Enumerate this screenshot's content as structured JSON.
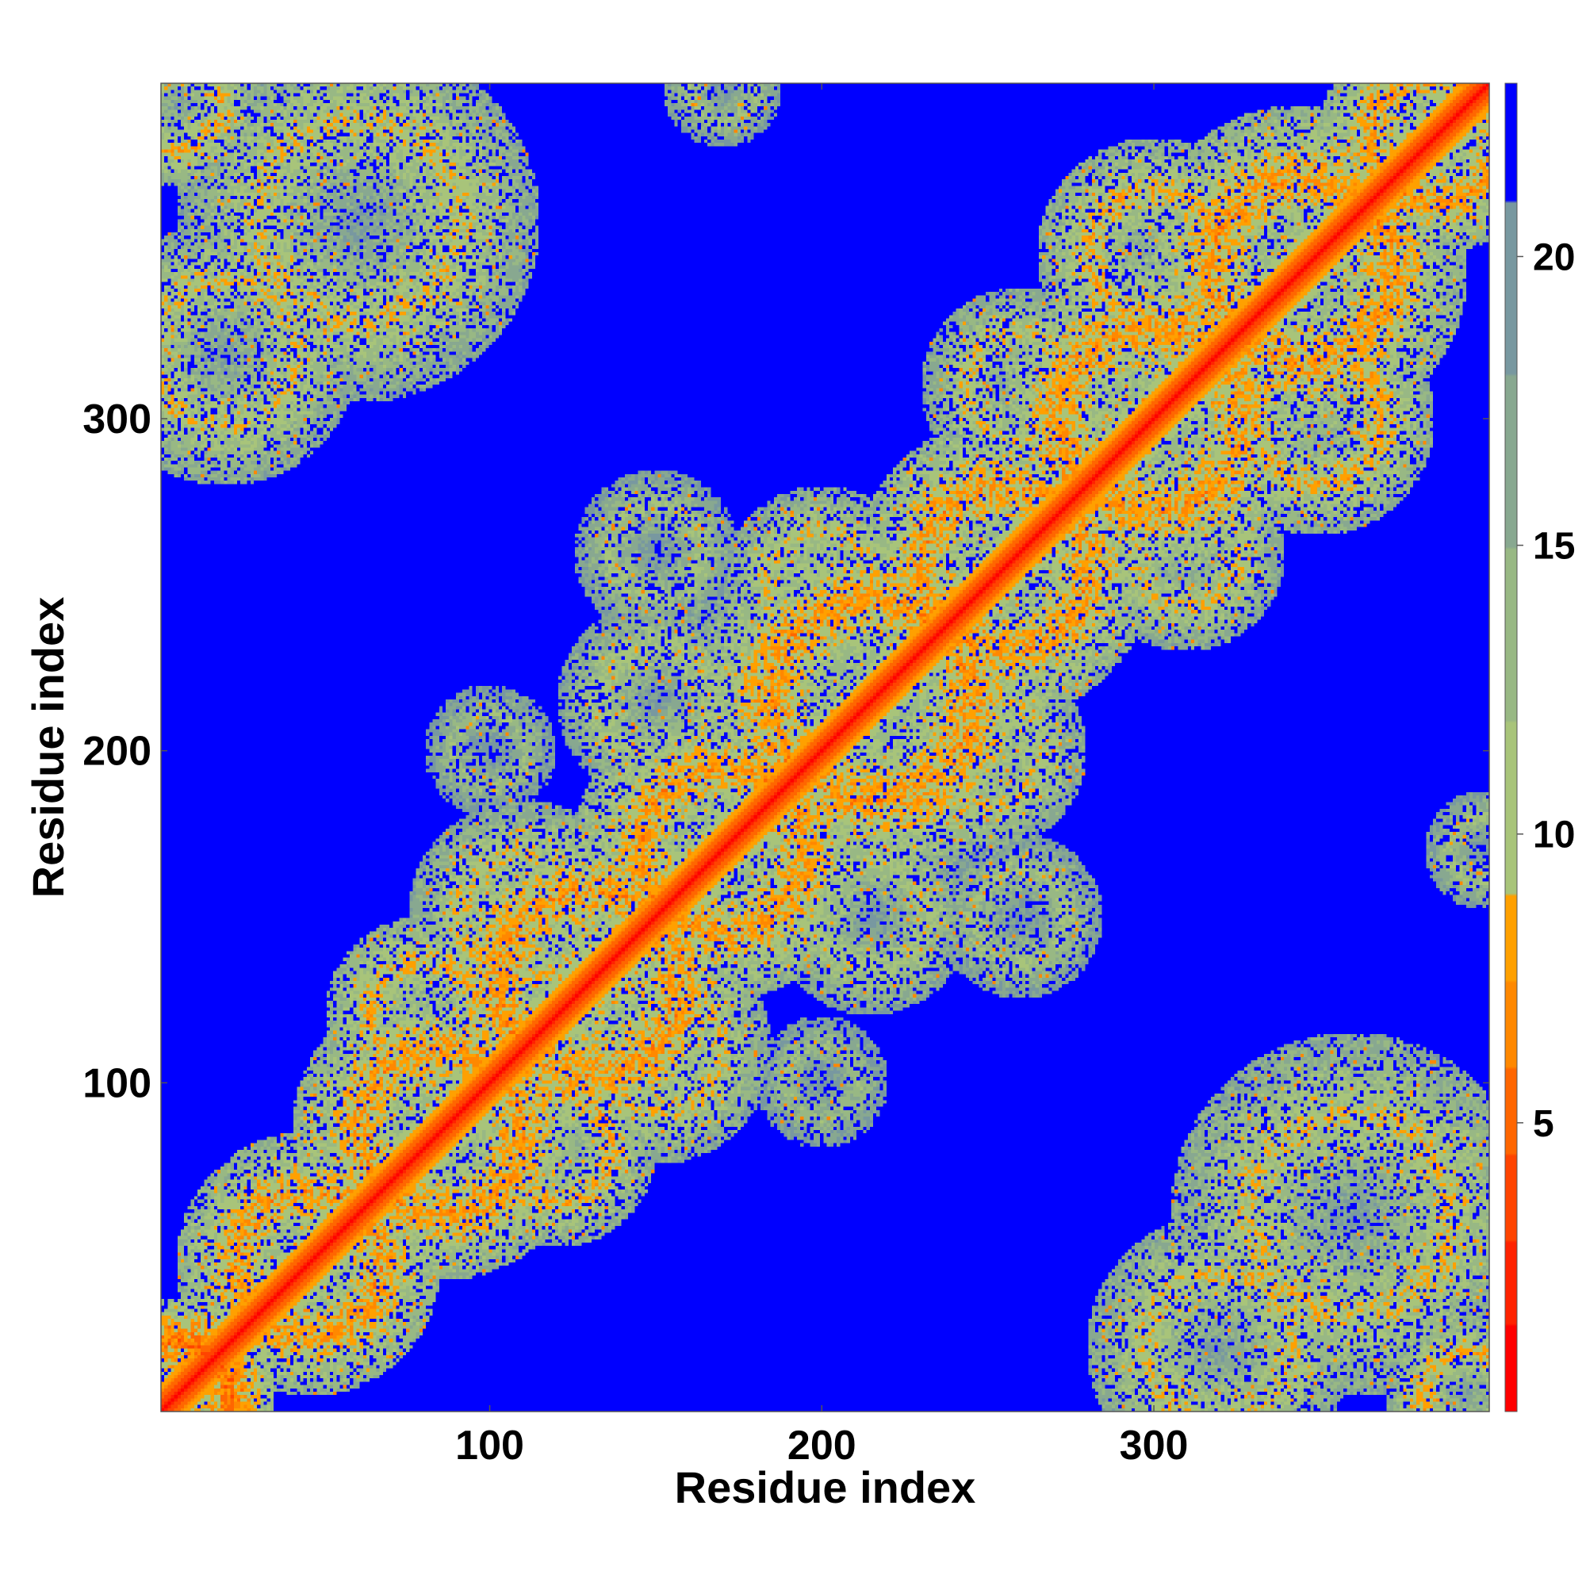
{
  "chart_data": {
    "type": "heatmap",
    "title": "",
    "xlabel": "Residue index",
    "ylabel": "Residue index",
    "xlim": [
      1,
      401
    ],
    "ylim": [
      1,
      401
    ],
    "x_ticks": [
      100,
      200,
      300
    ],
    "y_ticks": [
      100,
      200,
      300
    ],
    "diagonal": "y = x (distance 0)",
    "colorbar": {
      "ticks": [
        5,
        10,
        15,
        20
      ],
      "range": [
        0,
        23
      ],
      "orientation": "vertical",
      "placement": "right",
      "levels": [
        {
          "min": 0,
          "max": 1.5,
          "color": "#ff0000"
        },
        {
          "min": 1.5,
          "max": 3,
          "color": "#ff2200"
        },
        {
          "min": 3,
          "max": 4.5,
          "color": "#ff4400"
        },
        {
          "min": 4.5,
          "max": 6,
          "color": "#ff6600"
        },
        {
          "min": 6,
          "max": 7.5,
          "color": "#ff8800"
        },
        {
          "min": 7.5,
          "max": 9,
          "color": "#ffa000"
        },
        {
          "min": 9,
          "max": 12,
          "color": "#a8c47a"
        },
        {
          "min": 12,
          "max": 15,
          "color": "#98b884"
        },
        {
          "min": 15,
          "max": 18,
          "color": "#88a890"
        },
        {
          "min": 18,
          "max": 21,
          "color": "#7898a0"
        },
        {
          "min": 21,
          "max": 23,
          "color": "#0000ff"
        }
      ]
    },
    "background_color": "#0000ff",
    "clusters": [
      {
        "x": 5,
        "y": 5,
        "r": 30,
        "d": 6
      },
      {
        "x": 45,
        "y": 45,
        "r": 40,
        "d": 8
      },
      {
        "x": 85,
        "y": 85,
        "r": 45,
        "d": 8
      },
      {
        "x": 130,
        "y": 130,
        "r": 50,
        "d": 8
      },
      {
        "x": 170,
        "y": 170,
        "r": 45,
        "d": 8
      },
      {
        "x": 215,
        "y": 215,
        "r": 55,
        "d": 8
      },
      {
        "x": 255,
        "y": 255,
        "r": 45,
        "d": 8
      },
      {
        "x": 300,
        "y": 300,
        "r": 50,
        "d": 8
      },
      {
        "x": 345,
        "y": 345,
        "r": 50,
        "d": 8
      },
      {
        "x": 385,
        "y": 385,
        "r": 35,
        "d": 8
      },
      {
        "x": 80,
        "y": 120,
        "r": 30,
        "d": 9
      },
      {
        "x": 120,
        "y": 80,
        "r": 30,
        "d": 9
      },
      {
        "x": 150,
        "y": 110,
        "r": 35,
        "d": 10
      },
      {
        "x": 110,
        "y": 150,
        "r": 35,
        "d": 10
      },
      {
        "x": 150,
        "y": 215,
        "r": 30,
        "d": 11
      },
      {
        "x": 215,
        "y": 150,
        "r": 30,
        "d": 11
      },
      {
        "x": 250,
        "y": 200,
        "r": 30,
        "d": 10
      },
      {
        "x": 200,
        "y": 250,
        "r": 30,
        "d": 10
      },
      {
        "x": 310,
        "y": 260,
        "r": 30,
        "d": 10
      },
      {
        "x": 260,
        "y": 310,
        "r": 30,
        "d": 10
      },
      {
        "x": 350,
        "y": 300,
        "r": 35,
        "d": 9
      },
      {
        "x": 300,
        "y": 350,
        "r": 35,
        "d": 9
      },
      {
        "x": 360,
        "y": 60,
        "r": 55,
        "d": 10
      },
      {
        "x": 60,
        "y": 360,
        "r": 55,
        "d": 10
      },
      {
        "x": 320,
        "y": 20,
        "r": 40,
        "d": 10
      },
      {
        "x": 20,
        "y": 320,
        "r": 40,
        "d": 10
      },
      {
        "x": 395,
        "y": 5,
        "r": 25,
        "d": 9
      },
      {
        "x": 5,
        "y": 395,
        "r": 25,
        "d": 9
      },
      {
        "x": 260,
        "y": 150,
        "r": 25,
        "d": 12
      },
      {
        "x": 150,
        "y": 260,
        "r": 25,
        "d": 12
      },
      {
        "x": 100,
        "y": 200,
        "r": 20,
        "d": 13
      },
      {
        "x": 200,
        "y": 100,
        "r": 20,
        "d": 13
      },
      {
        "x": 400,
        "y": 170,
        "r": 18,
        "d": 12
      },
      {
        "x": 170,
        "y": 400,
        "r": 18,
        "d": 12
      }
    ]
  }
}
